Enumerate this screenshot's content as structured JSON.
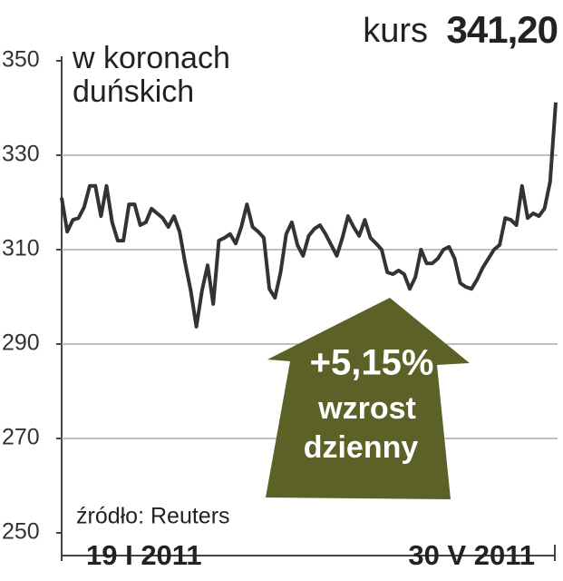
{
  "chart_data": {
    "type": "line",
    "title_label": "kurs",
    "title_value": "341,20",
    "unit_label": [
      "w koronach",
      "duńskich"
    ],
    "source": "źródło: Reuters",
    "annotation": [
      "+5,15%",
      "wzrost",
      "dzienny"
    ],
    "ylim": [
      250,
      350
    ],
    "yticks": [
      250,
      270,
      290,
      310,
      330,
      350
    ],
    "grid": true,
    "categories": [
      "19 I 2011",
      null,
      null,
      null,
      null,
      null,
      null,
      null,
      null,
      null,
      null,
      null,
      null,
      null,
      null,
      null,
      null,
      null,
      null,
      null,
      null,
      null,
      null,
      null,
      null,
      null,
      null,
      null,
      null,
      null,
      null,
      null,
      null,
      null,
      null,
      null,
      null,
      null,
      null,
      null,
      null,
      null,
      null,
      null,
      null,
      null,
      null,
      null,
      null,
      null,
      null,
      null,
      null,
      null,
      null,
      null,
      null,
      null,
      null,
      null,
      null,
      null,
      null,
      null,
      null,
      null,
      null,
      null,
      null,
      null,
      null,
      null,
      null,
      null,
      null,
      null,
      null,
      null,
      null,
      null,
      null,
      null,
      null,
      null,
      null,
      null,
      null,
      null,
      "30 V 2011"
    ],
    "series": [
      {
        "color": "#333333",
        "values": [
          321,
          313.8,
          316.3,
          316.7,
          319.0,
          323.5,
          323.5,
          317.1,
          323.5,
          315.8,
          311.9,
          311.9,
          319.6,
          319.6,
          315.2,
          315.8,
          318.7,
          317.7,
          316.7,
          314.8,
          317.1,
          313.8,
          307.1,
          301.3,
          293.7,
          301.3,
          306.7,
          298.5,
          311.9,
          312.5,
          313.3,
          311.3,
          314.8,
          319.6,
          314.8,
          313.8,
          312.5,
          301.7,
          299.8,
          305.2,
          313.3,
          315.8,
          311.0,
          308.7,
          312.9,
          314.4,
          315.2,
          313.3,
          311.0,
          308.7,
          312.5,
          317.1,
          314.8,
          312.9,
          316.3,
          312.5,
          311.3,
          310.0,
          305.2,
          304.8,
          305.6,
          304.8,
          301.7,
          304.2,
          310.0,
          307.1,
          307.1,
          308.1,
          310.0,
          310.6,
          308.1,
          302.9,
          302.1,
          301.7,
          303.7,
          306.2,
          308.1,
          310.0,
          311.0,
          316.7,
          316.3,
          315.2,
          323.5,
          316.7,
          317.7,
          317.1,
          318.7,
          324.4,
          341.2
        ]
      }
    ],
    "annotation_color": "#5b6127"
  }
}
